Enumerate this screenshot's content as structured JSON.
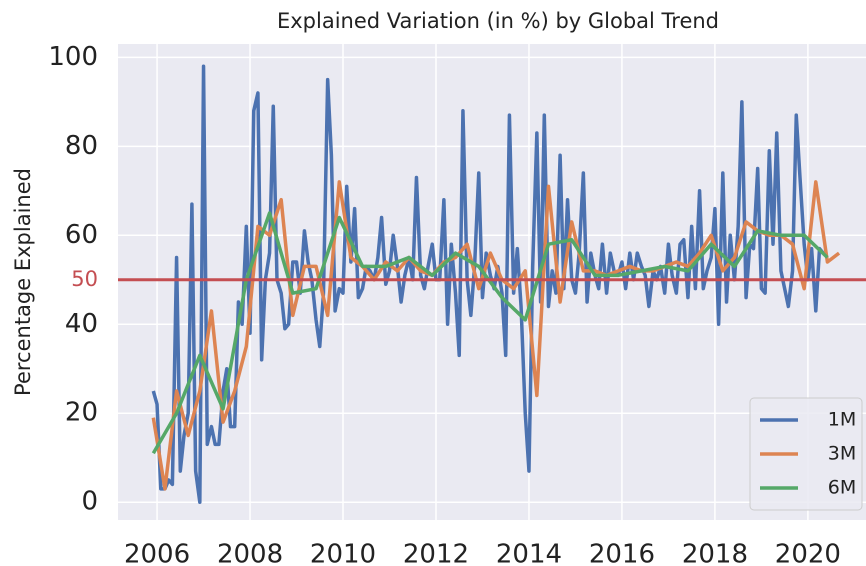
{
  "chart_data": {
    "type": "line",
    "title": "Explained Variation (in %) by Global Trend",
    "y_label": "Percentage Explained",
    "xlim": [
      2005.16,
      2021.25
    ],
    "ylim": [
      -4,
      103
    ],
    "xticks": [
      2006,
      2008,
      2010,
      2012,
      2014,
      2016,
      2018,
      2020
    ],
    "yticks": [
      0,
      20,
      40,
      60,
      80,
      100
    ],
    "grid": true,
    "legend": "lower right",
    "hlines": [
      {
        "value": 50,
        "color": "#c44e52"
      }
    ],
    "series": [
      {
        "name": "1M",
        "color": "#4c72b0",
        "x": [
          2005.92,
          2006.0,
          2006.08,
          2006.17,
          2006.25,
          2006.33,
          2006.42,
          2006.5,
          2006.58,
          2006.67,
          2006.75,
          2006.83,
          2006.92,
          2007.0,
          2007.08,
          2007.17,
          2007.25,
          2007.33,
          2007.42,
          2007.5,
          2007.58,
          2007.67,
          2007.75,
          2007.83,
          2007.92,
          2008.0,
          2008.08,
          2008.17,
          2008.25,
          2008.33,
          2008.42,
          2008.5,
          2008.58,
          2008.67,
          2008.75,
          2008.83,
          2008.92,
          2009.0,
          2009.08,
          2009.17,
          2009.25,
          2009.33,
          2009.42,
          2009.5,
          2009.58,
          2009.67,
          2009.75,
          2009.83,
          2009.92,
          2010.0,
          2010.08,
          2010.17,
          2010.25,
          2010.33,
          2010.42,
          2010.5,
          2010.58,
          2010.67,
          2010.75,
          2010.83,
          2010.92,
          2011.0,
          2011.08,
          2011.17,
          2011.25,
          2011.33,
          2011.42,
          2011.5,
          2011.58,
          2011.67,
          2011.75,
          2011.83,
          2011.92,
          2012.0,
          2012.08,
          2012.17,
          2012.25,
          2012.33,
          2012.42,
          2012.5,
          2012.58,
          2012.67,
          2012.75,
          2012.83,
          2012.92,
          2013.0,
          2013.08,
          2013.17,
          2013.25,
          2013.33,
          2013.42,
          2013.5,
          2013.58,
          2013.67,
          2013.75,
          2013.83,
          2013.92,
          2014.0,
          2014.08,
          2014.17,
          2014.25,
          2014.33,
          2014.42,
          2014.5,
          2014.58,
          2014.67,
          2014.75,
          2014.83,
          2014.92,
          2015.0,
          2015.08,
          2015.17,
          2015.25,
          2015.33,
          2015.42,
          2015.5,
          2015.58,
          2015.67,
          2015.75,
          2015.83,
          2015.92,
          2016.0,
          2016.08,
          2016.17,
          2016.25,
          2016.33,
          2016.42,
          2016.5,
          2016.58,
          2016.67,
          2016.75,
          2016.83,
          2016.92,
          2017.0,
          2017.08,
          2017.17,
          2017.25,
          2017.33,
          2017.42,
          2017.5,
          2017.58,
          2017.67,
          2017.75,
          2017.83,
          2017.92,
          2018.0,
          2018.08,
          2018.17,
          2018.25,
          2018.33,
          2018.42,
          2018.5,
          2018.58,
          2018.67,
          2018.75,
          2018.83,
          2018.92,
          2019.0,
          2019.08,
          2019.17,
          2019.25,
          2019.33,
          2019.42,
          2019.5,
          2019.58,
          2019.67,
          2019.75,
          2019.83,
          2019.92,
          2020.0,
          2020.08,
          2020.17,
          2020.25,
          2020.33
        ],
        "values": [
          25,
          22,
          3,
          3,
          5,
          4,
          55,
          7,
          15,
          20,
          67,
          7,
          0,
          98,
          13,
          17,
          13,
          13,
          25,
          30,
          17,
          17,
          45,
          40,
          62,
          38,
          88,
          92,
          32,
          50,
          56,
          89,
          50,
          47,
          39,
          40,
          54,
          54,
          47,
          61,
          54,
          50,
          41,
          35,
          47,
          95,
          78,
          43,
          48,
          47,
          71,
          54,
          66,
          46,
          48,
          53,
          52,
          50,
          55,
          64,
          49,
          52,
          60,
          53,
          45,
          51,
          55,
          50,
          73,
          51,
          48,
          53,
          58,
          50,
          50,
          68,
          40,
          58,
          47,
          33,
          88,
          50,
          42,
          53,
          74,
          46,
          56,
          51,
          48,
          53,
          47,
          33,
          87,
          47,
          57,
          44,
          20,
          7,
          53,
          83,
          45,
          87,
          44,
          52,
          47,
          78,
          48,
          68,
          50,
          47,
          56,
          74,
          45,
          56,
          51,
          48,
          58,
          47,
          56,
          52,
          51,
          54,
          48,
          56,
          50,
          56,
          53,
          51,
          44,
          52,
          50,
          53,
          47,
          58,
          51,
          47,
          58,
          59,
          46,
          62,
          48,
          70,
          48,
          52,
          55,
          66,
          40,
          74,
          45,
          60,
          50,
          62,
          90,
          46,
          58,
          57,
          75,
          48,
          47,
          79,
          58,
          83,
          52,
          48,
          44,
          52,
          87,
          73,
          58,
          50,
          57,
          43,
          57,
          56
        ]
      },
      {
        "name": "3M",
        "color": "#dd8452",
        "x": [
          2005.92,
          2006.17,
          2006.42,
          2006.67,
          2006.92,
          2007.17,
          2007.42,
          2007.67,
          2007.92,
          2008.17,
          2008.42,
          2008.67,
          2008.92,
          2009.17,
          2009.42,
          2009.67,
          2009.92,
          2010.17,
          2010.42,
          2010.67,
          2010.92,
          2011.17,
          2011.42,
          2011.67,
          2011.92,
          2012.17,
          2012.42,
          2012.67,
          2012.92,
          2013.17,
          2013.42,
          2013.67,
          2013.92,
          2014.17,
          2014.42,
          2014.67,
          2014.92,
          2015.17,
          2015.42,
          2015.67,
          2015.92,
          2016.17,
          2016.42,
          2016.67,
          2016.92,
          2017.17,
          2017.42,
          2017.67,
          2017.92,
          2018.17,
          2018.42,
          2018.67,
          2018.92,
          2019.17,
          2019.42,
          2019.67,
          2019.92,
          2020.17,
          2020.42,
          2020.67
        ],
        "values": [
          19,
          3,
          25,
          15,
          25,
          43,
          18,
          25,
          35,
          62,
          60,
          68,
          42,
          53,
          53,
          42,
          72,
          55,
          53,
          50,
          54,
          52,
          55,
          52,
          51,
          54,
          55,
          58,
          48,
          56,
          50,
          48,
          52,
          24,
          71,
          45,
          63,
          52,
          52,
          51,
          52,
          53,
          52,
          52,
          53,
          54,
          53,
          56,
          60,
          52,
          55,
          63,
          61,
          60,
          60,
          58,
          48,
          72,
          54,
          56
        ]
      },
      {
        "name": "6M",
        "color": "#55a868",
        "x": [
          2005.92,
          2006.42,
          2006.92,
          2007.42,
          2007.92,
          2008.42,
          2008.92,
          2009.42,
          2009.92,
          2010.42,
          2010.92,
          2011.42,
          2011.92,
          2012.42,
          2012.92,
          2013.42,
          2013.92,
          2014.42,
          2014.92,
          2015.42,
          2015.92,
          2016.42,
          2016.92,
          2017.42,
          2017.92,
          2018.42,
          2018.92,
          2019.42,
          2019.92,
          2020.42
        ],
        "values": [
          11,
          20,
          33,
          21,
          50,
          65,
          47,
          48,
          64,
          53,
          53,
          55,
          51,
          56,
          53,
          46,
          41,
          58,
          59,
          51,
          51,
          52,
          53,
          52,
          58,
          53,
          61,
          60,
          60,
          55
        ]
      }
    ]
  }
}
